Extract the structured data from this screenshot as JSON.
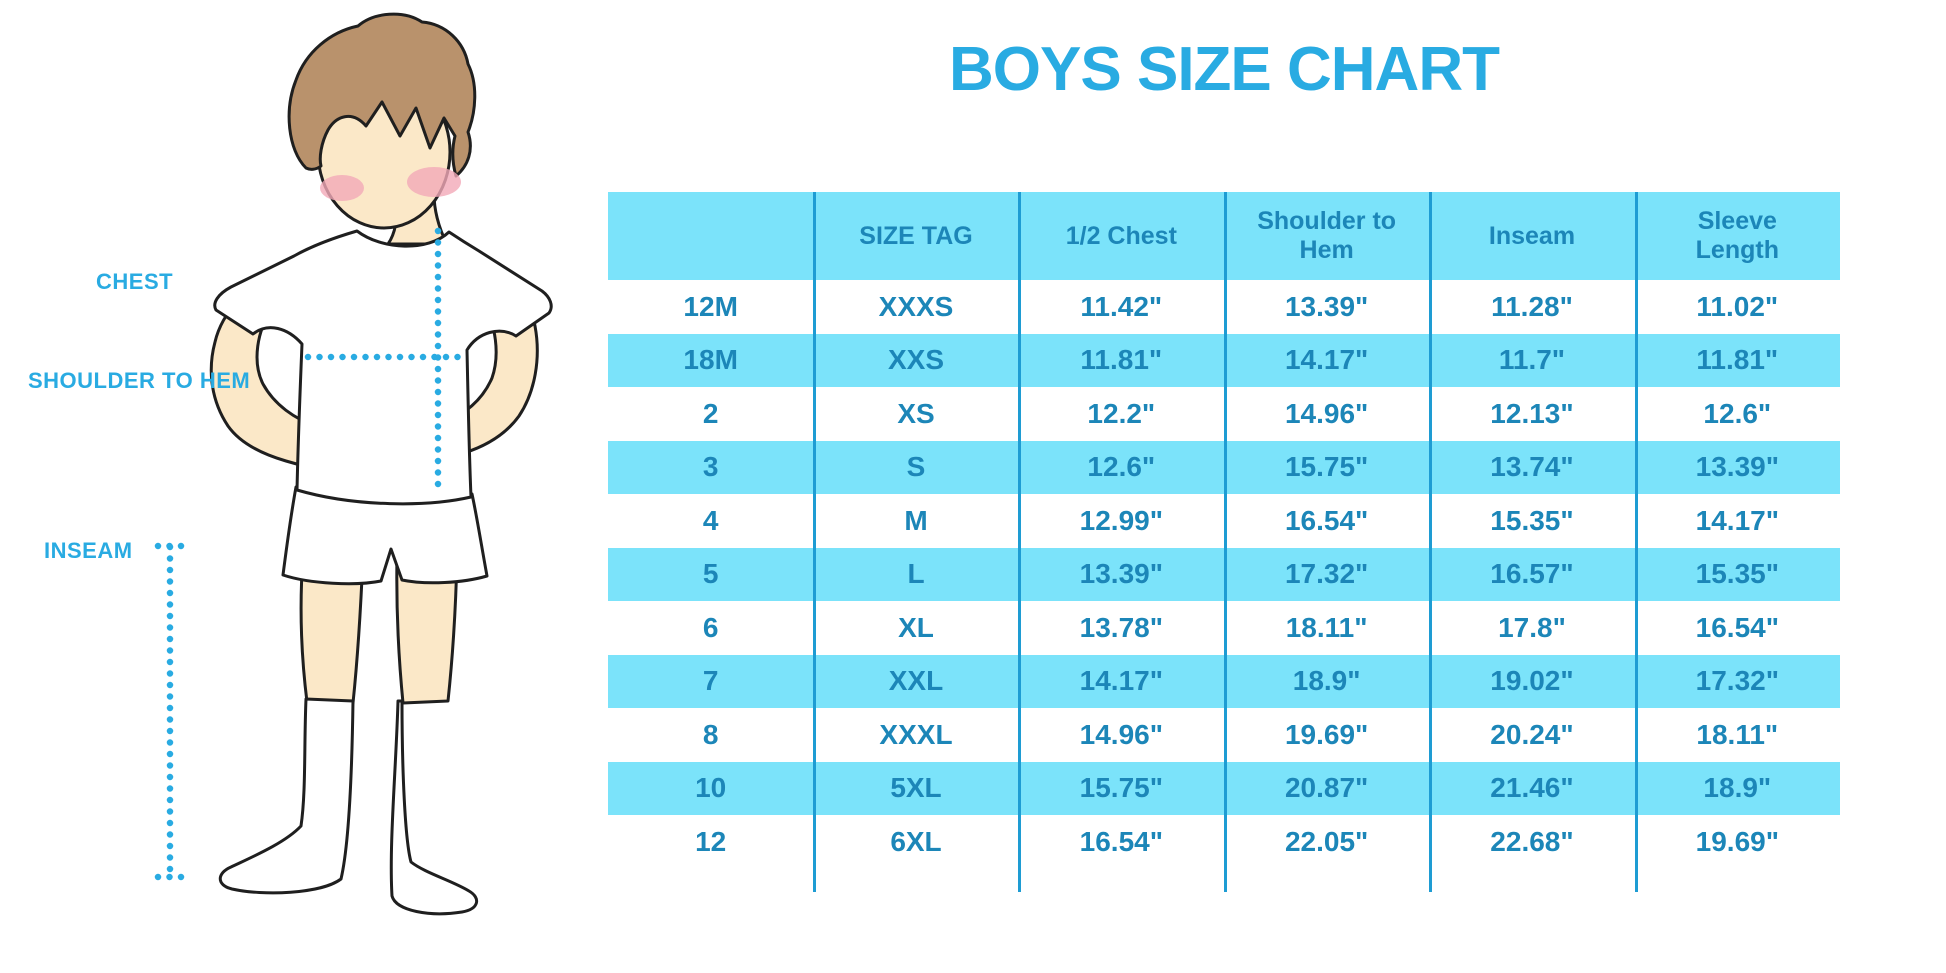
{
  "title": "BOYS SIZE CHART",
  "figure": {
    "chest_label": "CHEST",
    "shoulder_to_hem_label": "SHOULDER TO HEM",
    "inseam_label": "INSEAM"
  },
  "colors": {
    "accent_blue": "#29ABE2",
    "row_stripe": "#7BE3FA",
    "cell_text": "#1C86B8",
    "divider": "#1E9CD3",
    "skin": "#FBE8C8",
    "hair": "#B9926C",
    "blush": "#F2A9B8"
  },
  "chart_data": {
    "type": "table",
    "title": "BOYS SIZE CHART",
    "columns": [
      "",
      "SIZE TAG",
      "1/2 Chest",
      "Shoulder to Hem",
      "Inseam",
      "Sleeve Length"
    ],
    "rows": [
      [
        "12M",
        "XXXS",
        "11.42\"",
        "13.39\"",
        "11.28\"",
        "11.02\""
      ],
      [
        "18M",
        "XXS",
        "11.81\"",
        "14.17\"",
        "11.7\"",
        "11.81\""
      ],
      [
        "2",
        "XS",
        "12.2\"",
        "14.96\"",
        "12.13\"",
        "12.6\""
      ],
      [
        "3",
        "S",
        "12.6\"",
        "15.75\"",
        "13.74\"",
        "13.39\""
      ],
      [
        "4",
        "M",
        "12.99\"",
        "16.54\"",
        "15.35\"",
        "14.17\""
      ],
      [
        "5",
        "L",
        "13.39\"",
        "17.32\"",
        "16.57\"",
        "15.35\""
      ],
      [
        "6",
        "XL",
        "13.78\"",
        "18.11\"",
        "17.8\"",
        "16.54\""
      ],
      [
        "7",
        "XXL",
        "14.17\"",
        "18.9\"",
        "19.02\"",
        "17.32\""
      ],
      [
        "8",
        "XXXL",
        "14.96\"",
        "19.69\"",
        "20.24\"",
        "18.11\""
      ],
      [
        "10",
        "5XL",
        "15.75\"",
        "20.87\"",
        "21.46\"",
        "18.9\""
      ],
      [
        "12",
        "6XL",
        "16.54\"",
        "22.05\"",
        "22.68\"",
        "19.69\""
      ]
    ]
  }
}
